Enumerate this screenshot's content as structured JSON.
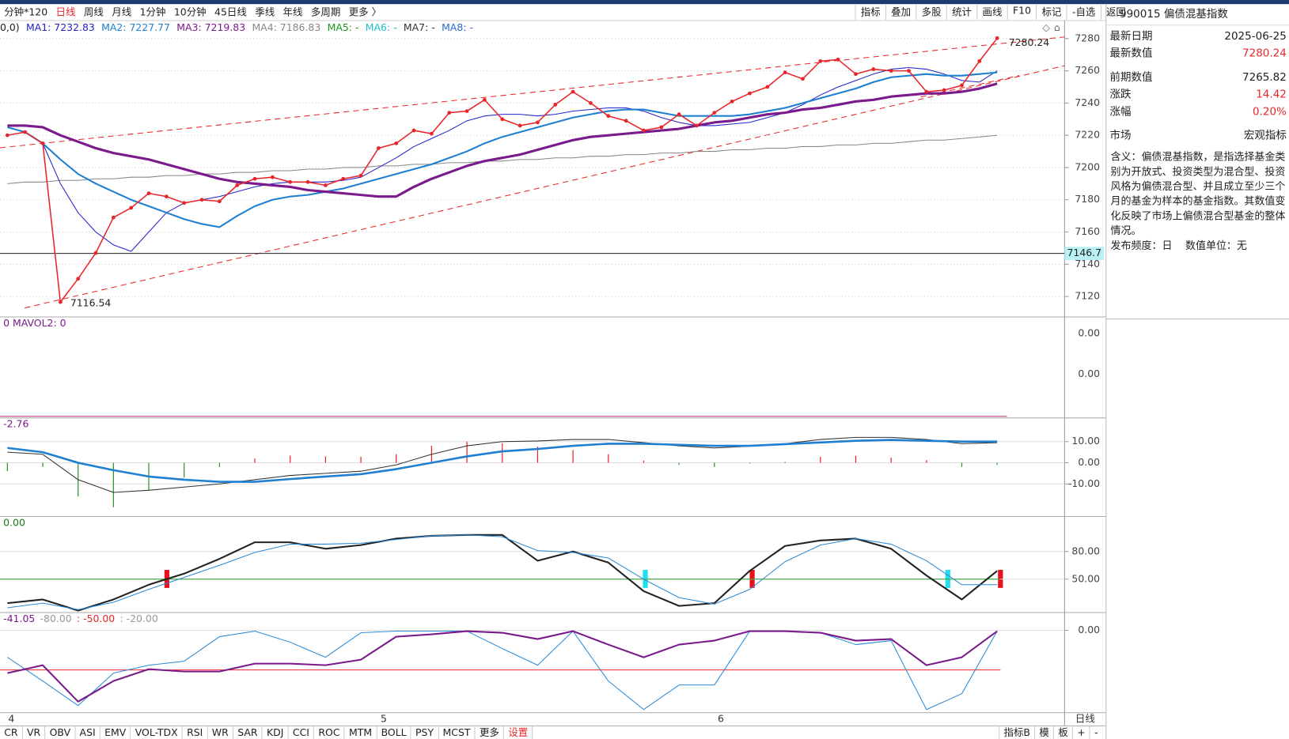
{
  "toolbar": {
    "periods": [
      "分钟*120",
      "日线",
      "周线",
      "月线",
      "1分钟",
      "10分钟",
      "45日线",
      "季线",
      "年线",
      "多周期",
      "更多 〉"
    ],
    "active_period": 1,
    "tools": [
      "指标",
      "叠加",
      "多股",
      "统计",
      "画线",
      "F10",
      "标记",
      "-自选",
      "返回"
    ]
  },
  "main": {
    "legend": [
      {
        "label": "0,0)",
        "color": "#222222"
      },
      {
        "label": "MA1: 7232.83",
        "color": "#2323c8"
      },
      {
        "label": "MA2: 7227.77",
        "color": "#1f7fd0"
      },
      {
        "label": "MA3: 7219.83",
        "color": "#7a1a8c"
      },
      {
        "label": "MA4: 7186.83",
        "color": "#888888"
      },
      {
        "label": "MA5: -",
        "color": "#1a9a1a"
      },
      {
        "label": "MA6: -",
        "color": "#20c0d0"
      },
      {
        "label": "MA7: -",
        "color": "#333333"
      },
      {
        "label": "MA8: -",
        "color": "#2a6ad0"
      }
    ],
    "ylim": [
      7107.8,
      7291.2
    ],
    "yticks": [
      7120,
      7140,
      7160,
      7180,
      7200,
      7220,
      7240,
      7260,
      7280
    ],
    "grid": true,
    "price": {
      "color": "#e8262a",
      "values": [
        7220,
        7222,
        7215,
        7116.54,
        7131,
        7147,
        7169,
        7175,
        7184,
        7182,
        7178,
        7180,
        7179,
        7189,
        7193,
        7194,
        7191,
        7191,
        7189,
        7193,
        7195,
        7212,
        7215,
        7223,
        7221,
        7234,
        7235,
        7242,
        7230,
        7226,
        7228,
        7239,
        7247,
        7240,
        7232,
        7229,
        7223,
        7225,
        7233,
        7226,
        7234,
        7241,
        7246,
        7250,
        7259,
        7255,
        7266,
        7267,
        7258,
        7261,
        7260,
        7260,
        7247,
        7248,
        7251,
        7266,
        7280.24
      ]
    },
    "ma_lines": [
      {
        "color": "#888888",
        "width": 1,
        "values": [
          7190,
          7191,
          7191,
          7192,
          7192,
          7193,
          7193,
          7194,
          7194,
          7195,
          7195,
          7196,
          7196,
          7197,
          7197,
          7198,
          7198,
          7199,
          7199,
          7200,
          7200,
          7201,
          7201,
          7202,
          7202,
          7203,
          7203,
          7204,
          7204,
          7205,
          7205,
          7206,
          7206,
          7207,
          7207,
          7208,
          7208,
          7209,
          7209,
          7210,
          7210,
          7211,
          7211,
          7212,
          7212,
          7213,
          7213,
          7214,
          7214,
          7215,
          7215,
          7216,
          7217,
          7217,
          7218,
          7219,
          7220
        ]
      },
      {
        "color": "#2323c8",
        "width": 1,
        "values": [
          7225,
          7222,
          7215,
          7190,
          7172,
          7160,
          7152,
          7148,
          7160,
          7172,
          7178,
          7180,
          7182,
          7185,
          7188,
          7190,
          7191,
          7191,
          7191,
          7192,
          7194,
          7200,
          7206,
          7213,
          7218,
          7223,
          7229,
          7232,
          7233,
          7233,
          7232,
          7233,
          7235,
          7236,
          7237,
          7237,
          7235,
          7231,
          7228,
          7226,
          7226,
          7227,
          7228,
          7231,
          7234,
          7239,
          7245,
          7250,
          7254,
          7258,
          7261,
          7262,
          7261,
          7258,
          7254,
          7253,
          7260
        ]
      },
      {
        "color": "#1f7fd0",
        "width": 2,
        "values": [
          7225,
          7222,
          7215,
          7205,
          7196,
          7190,
          7185,
          7180,
          7176,
          7172,
          7168,
          7165,
          7163,
          7170,
          7176,
          7180,
          7182,
          7183,
          7185,
          7187,
          7190,
          7193,
          7196,
          7199,
          7202,
          7206,
          7210,
          7215,
          7219,
          7222,
          7225,
          7228,
          7231,
          7233,
          7235,
          7236,
          7236,
          7234,
          7232,
          7232,
          7232,
          7232,
          7233,
          7235,
          7237,
          7240,
          7243,
          7246,
          7249,
          7253,
          7256,
          7257,
          7258,
          7257,
          7257,
          7258,
          7259
        ]
      },
      {
        "color": "#7a1a8c",
        "width": 3,
        "values": [
          7226,
          7226,
          7225,
          7220,
          7216,
          7212,
          7209,
          7207,
          7205,
          7202,
          7199,
          7196,
          7193,
          7191,
          7190,
          7189,
          7188,
          7186,
          7185,
          7184,
          7183,
          7182,
          7182,
          7188,
          7193,
          7197,
          7201,
          7204,
          7206,
          7208,
          7211,
          7214,
          7217,
          7219,
          7220,
          7221,
          7222,
          7223,
          7224,
          7226,
          7228,
          7229,
          7231,
          7233,
          7234,
          7236,
          7237,
          7239,
          7241,
          7242,
          7244,
          7245,
          7246,
          7246,
          7247,
          7249,
          7252
        ]
      }
    ],
    "high_label": "7280.24",
    "low_label": "7116.54",
    "cursor_price": 7146.7
  },
  "volume": {
    "header": "0 MAVOL2: 0",
    "axis_labels": [
      "0.00",
      "0.00"
    ]
  },
  "macd": {
    "header": [
      {
        "text": "-2.76",
        "color": "#7a1a8c"
      }
    ],
    "ylim": [
      -25,
      20.4
    ],
    "yticks": [
      {
        "value": 10,
        "label": "10.00"
      },
      {
        "value": 0,
        "label": "0.00"
      },
      {
        "value": -10,
        "label": "-10.00"
      }
    ],
    "hist": [
      -4,
      -2,
      -16,
      -21,
      -13,
      -7,
      -2,
      2,
      3.4,
      3,
      2.8,
      4,
      8,
      10,
      9.2,
      7.6,
      6,
      4,
      1,
      -1,
      -2,
      -0.4,
      0.4,
      2.8,
      3.2,
      2.4,
      1.2,
      -2,
      -1
    ],
    "series": [
      {
        "color": "#333333",
        "width": 1,
        "values": [
          5,
          4,
          -8,
          -14,
          -13,
          -11.5,
          -10,
          -8,
          -6,
          -5,
          -4,
          -1,
          4,
          8,
          10,
          10.3,
          11,
          11,
          9.5,
          8,
          7,
          7.8,
          9,
          11,
          12,
          12,
          11,
          9,
          9.5
        ]
      },
      {
        "color": "#1f7fd0",
        "width": 2.5,
        "values": [
          7,
          5,
          0,
          -3.5,
          -6.5,
          -8,
          -9,
          -9,
          -7.7,
          -6.5,
          -5.4,
          -3,
          0,
          3,
          5.4,
          6.5,
          8,
          9,
          9,
          8.5,
          8,
          8,
          8.8,
          9.6,
          10.4,
          10.8,
          10.4,
          10,
          10
        ]
      }
    ]
  },
  "kdj": {
    "header": [
      {
        "text": "0.00",
        "color": "#1a7a1a"
      }
    ],
    "ylim": [
      14.7,
      116.2
    ],
    "yticks": [
      {
        "value": 80,
        "label": "80.00"
      },
      {
        "value": 50,
        "label": "50.00"
      }
    ],
    "ref_line": {
      "value": 50,
      "color": "#2a9a2a"
    },
    "series": [
      {
        "color": "#222222",
        "width": 2,
        "values": [
          24,
          28,
          16,
          28,
          44,
          56,
          72,
          90,
          90,
          83,
          87,
          94,
          97,
          98,
          98,
          70,
          80,
          68,
          37,
          21,
          24,
          59,
          86,
          92,
          94,
          83,
          54,
          28,
          59
        ]
      },
      {
        "color": "#2a8ad8",
        "width": 1,
        "values": [
          19,
          24,
          17,
          25,
          39,
          52,
          65,
          79,
          88,
          88,
          89,
          93,
          97,
          98,
          96,
          81,
          79,
          73,
          50,
          30,
          23,
          39,
          69,
          87,
          94,
          88,
          70,
          44,
          44
        ]
      }
    ]
  },
  "wr": {
    "header": [
      {
        "text": "-41.05",
        "color": "#7a1a8c"
      },
      {
        "text": "-80.00",
        "color": "#999999"
      },
      {
        "text": ": -50.00",
        "color": "#e8262a"
      },
      {
        "text": ": -20.00",
        "color": "#999999"
      }
    ],
    "ylim": [
      -103,
      20.4
    ],
    "yticks": [
      {
        "value": 0,
        "label": "0.00"
      }
    ],
    "ref_line": {
      "value": -50,
      "color": "#e8262a"
    },
    "series": [
      {
        "color": "#2a8ad8",
        "width": 1,
        "values": [
          -34,
          -64,
          -95,
          -54,
          -44,
          -39,
          -8,
          -1,
          -15,
          -34,
          -3,
          -1,
          -1,
          -1,
          -23,
          -44,
          -1,
          -64,
          -100,
          -69,
          -69,
          -1,
          -1,
          -3,
          -18,
          -13,
          -100,
          -80,
          -1
        ]
      },
      {
        "color": "#7a1a8c",
        "width": 2,
        "values": [
          -54,
          -44,
          -90,
          -64,
          -49,
          -52,
          -52,
          -42,
          -42,
          -44,
          -37,
          -8,
          -5,
          -1,
          -3,
          -11,
          -1,
          -18,
          -34,
          -18,
          -13,
          -1,
          -1,
          -3,
          -13,
          -11,
          -44,
          -34,
          -1
        ]
      }
    ]
  },
  "dates": [
    "4",
    "5",
    "6"
  ],
  "bottom_tabs": [
    "CR",
    "VR",
    "OBV",
    "ASI",
    "EMV",
    "VOL-TDX",
    "RSI",
    "WR",
    "SAR",
    "KDJ",
    "CCI",
    "ROC",
    "MTM",
    "BOLL",
    "PSY",
    "MCST",
    "更多",
    "设置"
  ],
  "bottom_right": [
    "指标B",
    "模",
    "板",
    "+",
    "-"
  ],
  "period_label": "日线",
  "info": {
    "title": "990015 偏债混基指数",
    "rows": [
      {
        "label": "最新日期",
        "value": "2025-06-25",
        "color": "#222222"
      },
      {
        "label": "最新数值",
        "value": "7280.24",
        "color": "#e8262a"
      },
      {
        "label": "前期数值",
        "value": "7265.82",
        "color": "#222222"
      },
      {
        "label": "涨跌",
        "value": "14.42",
        "color": "#e8262a"
      },
      {
        "label": "涨幅",
        "value": "0.20%",
        "color": "#e8262a"
      },
      {
        "label": "市场",
        "value": "宏观指标",
        "color": "#222222"
      }
    ],
    "description": "含义：偏债混基指数，是指选择基金类别为开放式、投资类型为混合型、投资风格为偏债混合型、并且成立至少三个月的基金为样本的基金指数。其数值变化反映了市场上偏债混合型基金的整体情况。",
    "footer": "发布频度：日    数值单位：无"
  }
}
